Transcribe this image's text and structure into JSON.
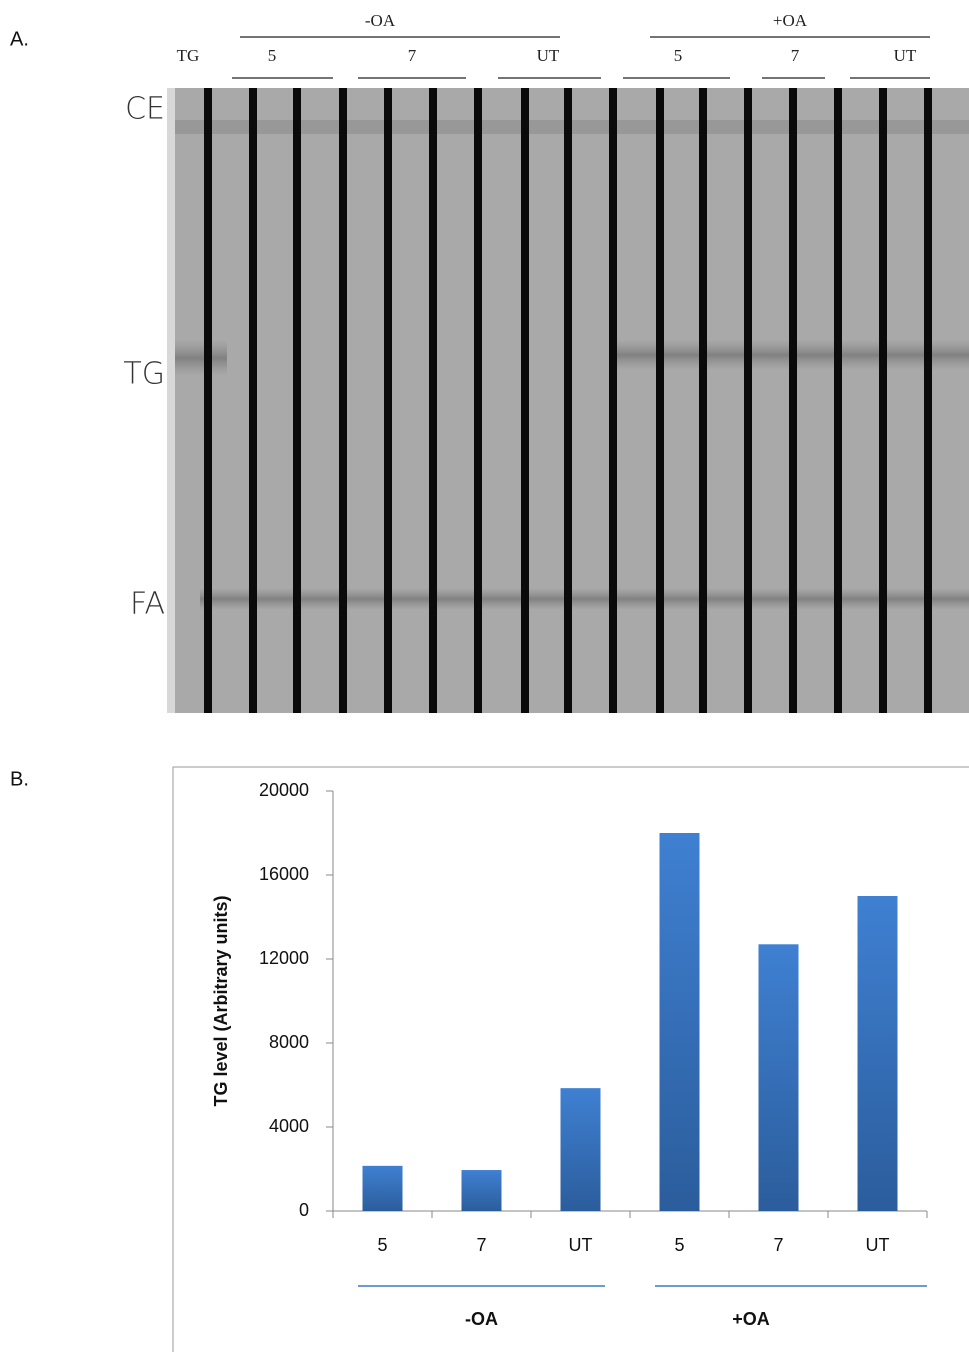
{
  "panel_a": {
    "label": "A.",
    "lane_groups": [
      "-OA",
      "+OA"
    ],
    "lane_labels": [
      "TG",
      "5",
      "7",
      "UT",
      "5",
      "7",
      "UT"
    ],
    "bands": [
      "CE",
      "TG",
      "FA"
    ]
  },
  "panel_b": {
    "label": "B."
  },
  "chart_data": {
    "type": "bar",
    "y_label": "TG level (Arbitrary units)",
    "categories": [
      "5",
      "7",
      "UT",
      "5",
      "7",
      "UT"
    ],
    "values": [
      2150,
      1950,
      5850,
      18000,
      12700,
      15000
    ],
    "color": "#3a78c6",
    "groups": [
      "-OA",
      "+OA"
    ],
    "ylim": [
      0,
      20000
    ],
    "yticks": [
      0,
      4000,
      8000,
      12000,
      16000,
      20000
    ],
    "grid": false
  }
}
